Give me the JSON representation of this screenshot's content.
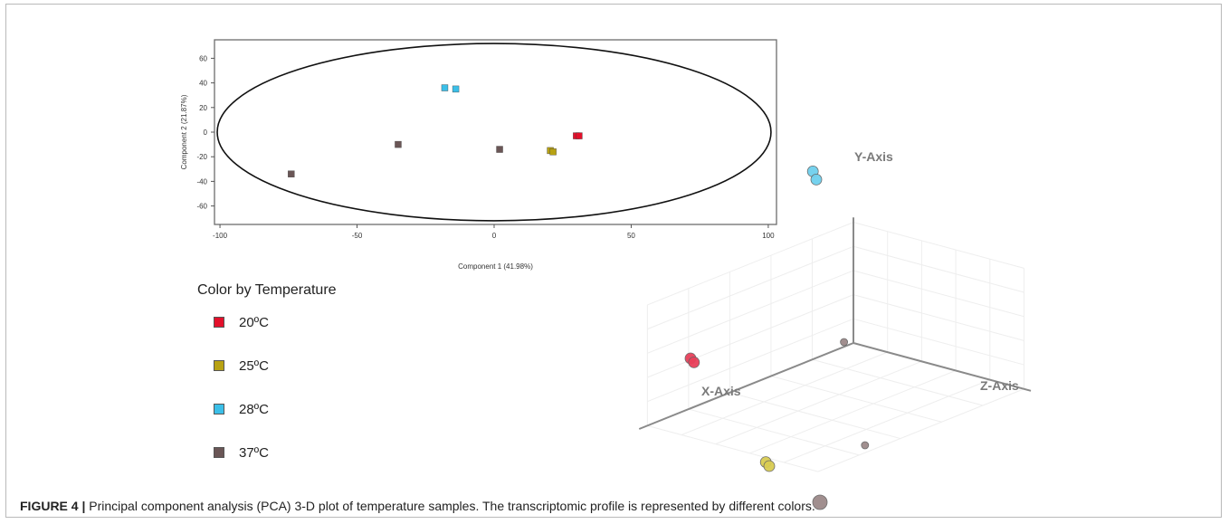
{
  "chart_data": [
    {
      "type": "scatter",
      "xlabel": "Component 1 (41.98%)",
      "ylabel": "Component 2 (21.87%)",
      "xlim": [
        -102,
        103
      ],
      "ylim": [
        -75,
        75
      ],
      "xticks": [
        -100,
        -50,
        0,
        50,
        100
      ],
      "yticks": [
        60,
        40,
        20,
        0,
        -20,
        -40,
        -60
      ],
      "grid": false,
      "ellipse": {
        "center": [
          0,
          0
        ],
        "rx": 101,
        "ry": 72
      },
      "series": [
        {
          "name": "20ºC",
          "color": "#e3102b",
          "points": [
            [
              30,
              -3
            ],
            [
              31,
              -3
            ]
          ]
        },
        {
          "name": "25ºC",
          "color": "#b8a213",
          "points": [
            [
              20.5,
              -15
            ],
            [
              21.5,
              -16
            ]
          ]
        },
        {
          "name": "28ºC",
          "color": "#3bbfe8",
          "points": [
            [
              -18,
              36
            ],
            [
              -14,
              35
            ]
          ]
        },
        {
          "name": "37ºC",
          "color": "#6a5656",
          "points": [
            [
              -35,
              -10
            ],
            [
              2,
              -14
            ],
            [
              -74,
              -34
            ]
          ]
        }
      ]
    },
    {
      "type": "scatter",
      "projection": "3d",
      "axis_labels": {
        "x": "X-Axis",
        "y": "Y-Axis",
        "z": "Z-Axis"
      },
      "grid": true,
      "series": [
        {
          "name": "20ºC",
          "color": "#e8405a",
          "points": [
            [
              -40,
              -5,
              30
            ],
            [
              -39,
              -6,
              31
            ]
          ]
        },
        {
          "name": "25ºC",
          "color": "#d9cc52",
          "points": [
            [
              -20,
              -30,
              32
            ],
            [
              -19,
              -31,
              33
            ]
          ]
        },
        {
          "name": "28ºC",
          "color": "#6fd0ee",
          "points": [
            [
              -8,
              40,
              28
            ],
            [
              -7,
              38,
              29
            ]
          ]
        },
        {
          "name": "37ºC",
          "color": "#9c8a8a",
          "points": [
            [
              -2,
              0,
              5
            ],
            [
              4,
              -25,
              10
            ],
            [
              -5,
              -40,
              40
            ]
          ]
        }
      ]
    }
  ],
  "legend": {
    "title": "Color by Temperature",
    "items": [
      {
        "label": "20ºC",
        "color": "#e3102b"
      },
      {
        "label": "25ºC",
        "color": "#b8a213"
      },
      {
        "label": "28ºC",
        "color": "#3bbfe8"
      },
      {
        "label": "37ºC",
        "color": "#6a5656"
      }
    ]
  },
  "caption": {
    "label": "FIGURE 4 |",
    "text": " Principal component analysis (PCA) 3-D plot of temperature samples. The transcriptomic profile is represented by different colors."
  }
}
